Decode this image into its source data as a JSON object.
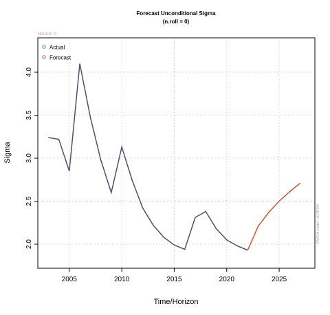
{
  "chart_data": {
    "type": "line",
    "title": "Forecast Unconditional Sigma",
    "subtitle": "(n.roll = 0)",
    "x_label": "Time/Horizon",
    "y_label": "Sigma",
    "annotations": [
      "Horizon: 0",
      "GARCH model : sGARCH"
    ],
    "series": [
      {
        "name": "Actual",
        "color": "#4a4f7a",
        "legend_color": "#3a8fd0",
        "x": [
          2003,
          2004,
          2005,
          2006,
          2007,
          2008,
          2009,
          2010,
          2011,
          2012,
          2013,
          2014,
          2015,
          2016,
          2017,
          2018,
          2019,
          2020,
          2021,
          2022
        ],
        "values": [
          3.24,
          3.22,
          2.85,
          4.1,
          3.48,
          2.98,
          2.6,
          3.13,
          2.74,
          2.42,
          2.22,
          2.08,
          1.99,
          1.94,
          2.31,
          2.38,
          2.18,
          2.05,
          1.98,
          1.93
        ]
      },
      {
        "name": "Forecast",
        "color": "#d9532b",
        "legend_color": "#d9532b",
        "x": [
          2022,
          2023,
          2024,
          2025,
          2026,
          2027
        ],
        "values": [
          1.93,
          2.21,
          2.37,
          2.5,
          2.61,
          2.71
        ]
      }
    ],
    "xlim": [
      2002,
      2028.4
    ],
    "xticks": [
      2005,
      2010,
      2015,
      2020,
      2025
    ],
    "ylim": [
      1.72,
      4.4
    ],
    "yticks": [
      {
        "value": 2,
        "label": "2.0"
      },
      2.5,
      {
        "value": 3,
        "label": "3.0"
      },
      3.5,
      {
        "value": 4,
        "label": "4.0"
      }
    ],
    "grid": true,
    "legend": "top-left"
  }
}
